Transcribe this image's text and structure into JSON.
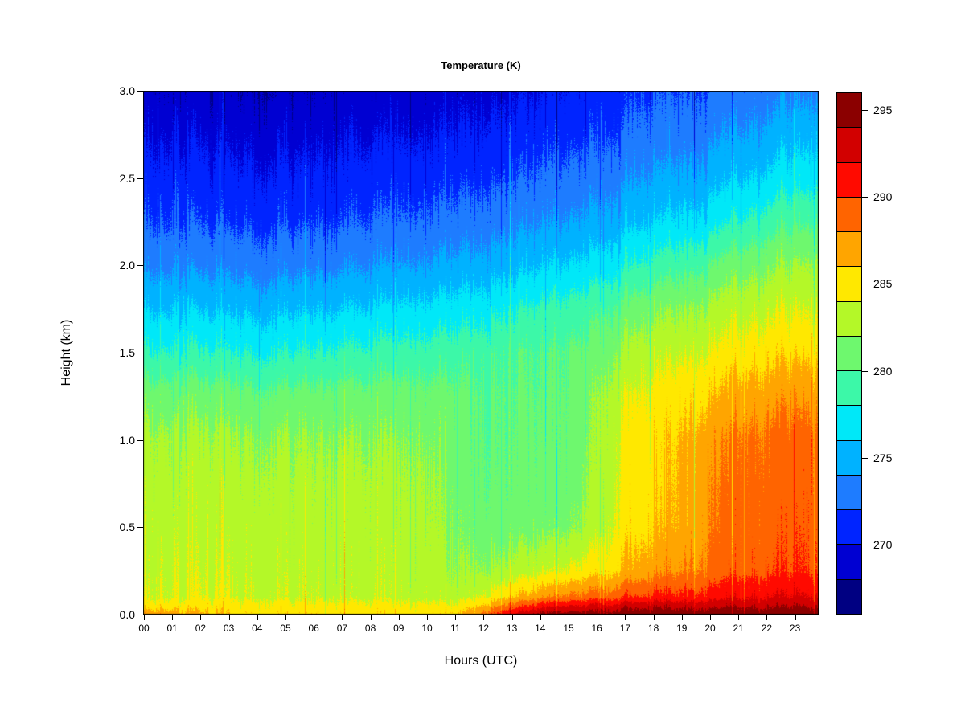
{
  "title": "Temperature (K)",
  "x_axis": {
    "label": "Hours (UTC)",
    "ticks": [
      "00",
      "01",
      "02",
      "03",
      "04",
      "05",
      "06",
      "07",
      "08",
      "09",
      "10",
      "11",
      "12",
      "13",
      "14",
      "15",
      "16",
      "17",
      "18",
      "19",
      "20",
      "21",
      "22",
      "23"
    ]
  },
  "y_axis": {
    "label": "Height (km)",
    "ticks": [
      "0.0",
      "0.5",
      "1.0",
      "1.5",
      "2.0",
      "2.5",
      "3.0"
    ]
  },
  "colorbar": {
    "tick_labels": [
      "270",
      "275",
      "280",
      "285",
      "290",
      "295"
    ],
    "min_K": 266,
    "max_K": 296,
    "step_K": 2
  },
  "chart_data": {
    "type": "heatmap",
    "title": "Temperature (K)",
    "xlabel": "Hours (UTC)",
    "ylabel": "Height (km)",
    "xlim": [
      0,
      24
    ],
    "ylim": [
      0,
      3
    ],
    "legend_position": "right",
    "grid": false,
    "levels_K": [
      266,
      268,
      270,
      272,
      274,
      276,
      278,
      280,
      282,
      284,
      286,
      288,
      290,
      292,
      294,
      296
    ],
    "level_colors": [
      "#000082",
      "#0000D2",
      "#0024FF",
      "#1E7CFF",
      "#00B2FF",
      "#00E8F8",
      "#3CF8A8",
      "#6EF86E",
      "#B4F828",
      "#FFE800",
      "#FFA500",
      "#FF6400",
      "#FF0A00",
      "#D20000",
      "#8B0000"
    ],
    "x_hours": [
      0,
      1,
      2,
      3,
      4,
      5,
      6,
      7,
      8,
      9,
      10,
      11,
      12,
      13,
      14,
      15,
      16,
      17,
      18,
      19,
      20,
      21,
      22,
      23,
      24
    ],
    "y_heights_km": [
      0,
      0.05,
      0.1,
      0.25,
      0.5,
      0.75,
      1.0,
      1.25,
      1.5,
      1.75,
      2.0,
      2.25,
      2.5,
      2.75,
      3.0
    ],
    "temperature_K": [
      [
        287.4,
        285.1,
        283.9,
        283.6,
        283.3,
        283.0,
        282.5,
        281.2,
        278.3,
        275.9,
        273.6,
        272.0,
        270.9,
        269.8,
        268.8
      ],
      [
        287.1,
        285.0,
        283.9,
        283.6,
        283.2,
        282.9,
        282.4,
        281.0,
        278.2,
        275.8,
        273.5,
        271.9,
        270.8,
        269.7,
        268.7
      ],
      [
        286.1,
        284.9,
        283.8,
        283.5,
        283.2,
        282.9,
        282.3,
        280.9,
        278.1,
        275.7,
        273.4,
        271.8,
        270.7,
        269.6,
        268.6
      ],
      [
        285.7,
        284.8,
        283.8,
        283.5,
        283.1,
        282.8,
        282.2,
        280.8,
        278.0,
        275.6,
        273.4,
        271.7,
        270.6,
        269.5,
        268.5
      ],
      [
        285.6,
        284.8,
        283.7,
        283.4,
        283.1,
        282.8,
        282.1,
        280.7,
        278.0,
        275.6,
        273.3,
        271.7,
        270.5,
        269.4,
        268.4
      ],
      [
        285.6,
        284.7,
        283.7,
        283.4,
        283.0,
        282.7,
        282.1,
        280.7,
        278.1,
        275.7,
        273.4,
        271.7,
        270.5,
        269.4,
        268.4
      ],
      [
        285.5,
        284.7,
        283.6,
        283.3,
        283.0,
        282.7,
        282.0,
        280.7,
        278.2,
        275.8,
        273.5,
        271.8,
        270.6,
        269.5,
        268.5
      ],
      [
        285.5,
        284.6,
        283.6,
        283.3,
        283.0,
        282.6,
        282.0,
        280.8,
        278.4,
        276.0,
        273.7,
        271.9,
        270.7,
        269.6,
        268.6
      ],
      [
        285.4,
        284.6,
        283.5,
        283.2,
        282.9,
        282.6,
        281.9,
        280.8,
        278.6,
        276.2,
        273.9,
        272.1,
        270.8,
        269.7,
        268.7
      ],
      [
        285.4,
        284.5,
        283.5,
        283.2,
        282.9,
        282.5,
        281.9,
        280.9,
        278.8,
        276.4,
        274.1,
        272.3,
        271.0,
        269.9,
        268.9
      ],
      [
        285.3,
        284.5,
        283.4,
        283.1,
        282.8,
        282.5,
        281.8,
        280.9,
        279.0,
        276.7,
        274.3,
        272.5,
        271.2,
        270.0,
        269.0
      ],
      [
        285.6,
        284.4,
        283.0,
        282.2,
        281.6,
        281.3,
        281.1,
        280.6,
        279.2,
        276.9,
        274.6,
        272.7,
        271.4,
        270.2,
        269.2
      ],
      [
        288.6,
        286.2,
        284.2,
        282.2,
        281.0,
        280.6,
        280.4,
        280.2,
        279.5,
        277.3,
        274.9,
        273.0,
        271.6,
        270.4,
        269.4
      ],
      [
        292.0,
        288.8,
        285.8,
        282.8,
        281.1,
        280.6,
        280.3,
        280.2,
        279.7,
        277.8,
        275.3,
        273.4,
        271.9,
        270.7,
        269.7
      ],
      [
        294.3,
        290.8,
        287.2,
        283.4,
        281.2,
        280.7,
        280.4,
        280.2,
        279.9,
        278.3,
        275.8,
        273.8,
        272.3,
        271.0,
        270.0
      ],
      [
        295.0,
        291.9,
        288.4,
        284.2,
        281.6,
        281.0,
        280.7,
        280.5,
        280.2,
        278.9,
        276.3,
        274.2,
        272.7,
        271.4,
        270.4
      ],
      [
        295.2,
        292.5,
        289.1,
        285.3,
        283.1,
        282.5,
        282.2,
        282.0,
        281.0,
        279.6,
        276.9,
        274.7,
        273.1,
        271.8,
        270.8
      ],
      [
        295.4,
        292.9,
        289.7,
        286.1,
        284.9,
        284.6,
        284.4,
        283.7,
        282.3,
        280.4,
        277.6,
        275.2,
        273.6,
        272.2,
        271.2
      ],
      [
        295.4,
        293.1,
        290.1,
        286.9,
        285.5,
        285.2,
        285.0,
        284.3,
        283.0,
        281.2,
        278.4,
        275.8,
        274.1,
        272.7,
        271.6
      ],
      [
        295.5,
        293.3,
        290.6,
        287.9,
        286.7,
        286.4,
        286.2,
        285.3,
        283.7,
        282.0,
        279.3,
        276.5,
        274.6,
        273.1,
        272.0
      ],
      [
        295.5,
        293.4,
        291.1,
        288.7,
        288.1,
        287.8,
        287.4,
        286.1,
        284.4,
        282.7,
        280.2,
        277.2,
        275.2,
        273.6,
        272.4
      ],
      [
        295.6,
        293.5,
        291.6,
        289.3,
        288.8,
        288.6,
        288.2,
        286.8,
        284.9,
        283.2,
        281.0,
        278.0,
        275.8,
        274.1,
        272.8
      ],
      [
        295.6,
        293.6,
        291.9,
        289.7,
        289.2,
        289.0,
        288.6,
        287.2,
        285.3,
        283.6,
        281.6,
        278.9,
        276.4,
        274.6,
        273.1
      ],
      [
        295.7,
        293.7,
        292.0,
        289.9,
        289.5,
        289.2,
        288.8,
        287.5,
        285.5,
        283.8,
        282.0,
        279.5,
        277.0,
        275.1,
        273.4
      ],
      [
        295.7,
        293.8,
        292.1,
        290.1,
        289.6,
        289.4,
        289.0,
        287.6,
        285.7,
        283.9,
        282.2,
        279.8,
        277.3,
        275.3,
        273.6
      ]
    ]
  }
}
